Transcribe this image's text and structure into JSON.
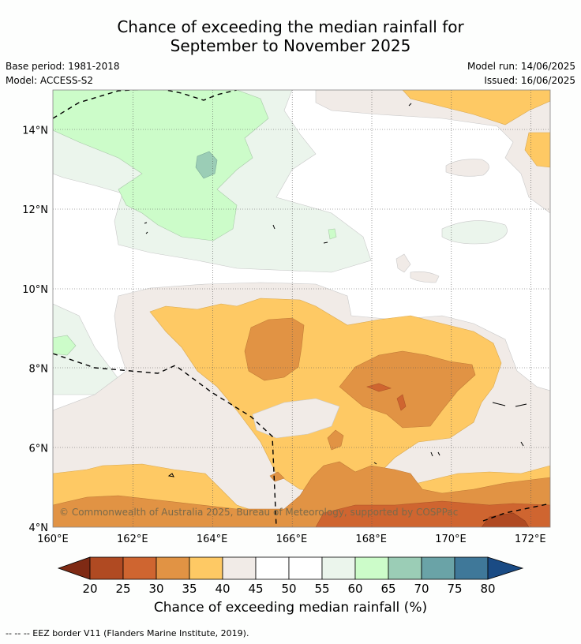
{
  "title_line1": "Chance of exceeding the median rainfall for",
  "title_line2": "September to November 2025",
  "base_period": "Base period: 1981-2018",
  "model": "Model: ACCESS-S2",
  "model_run": "Model run: 14/06/2025",
  "issued": "Issued: 16/06/2025",
  "copyright": "© Commonwealth of Australia 2025, Bureau of Meteorology, supported by COSPPac",
  "colorbar_title": "Chance of exceeding median rainfall (%)",
  "footnote": "--  --  -- EEZ border V11 (Flanders Marine Institute, 2019).",
  "x_ticks": [
    "160°E",
    "162°E",
    "164°E",
    "166°E",
    "168°E",
    "170°E",
    "172°E"
  ],
  "y_ticks": [
    "14°N",
    "12°N",
    "10°N",
    "8°N",
    "6°N",
    "4°N"
  ],
  "colorbar_ticks": [
    "20",
    "25",
    "30",
    "35",
    "40",
    "45",
    "50",
    "55",
    "60",
    "65",
    "70",
    "75",
    "80"
  ],
  "colorbar_colors": [
    "#7f2a14",
    "#b04a22",
    "#cf6530",
    "#e19344",
    "#fec964",
    "#f1ebe7",
    "#ffffff",
    "#ffffff",
    "#ebf5ec",
    "#ccfcc9",
    "#9bcdb6",
    "#6aa3a7",
    "#3f7899",
    "#1a4b84"
  ],
  "chart_data": {
    "type": "heatmap",
    "lon_range": [
      160,
      172.5
    ],
    "lat_range": [
      4,
      15
    ],
    "unit": "%",
    "levels": [
      20,
      25,
      30,
      35,
      40,
      45,
      50,
      55,
      60,
      65,
      70,
      75,
      80
    ]
  }
}
